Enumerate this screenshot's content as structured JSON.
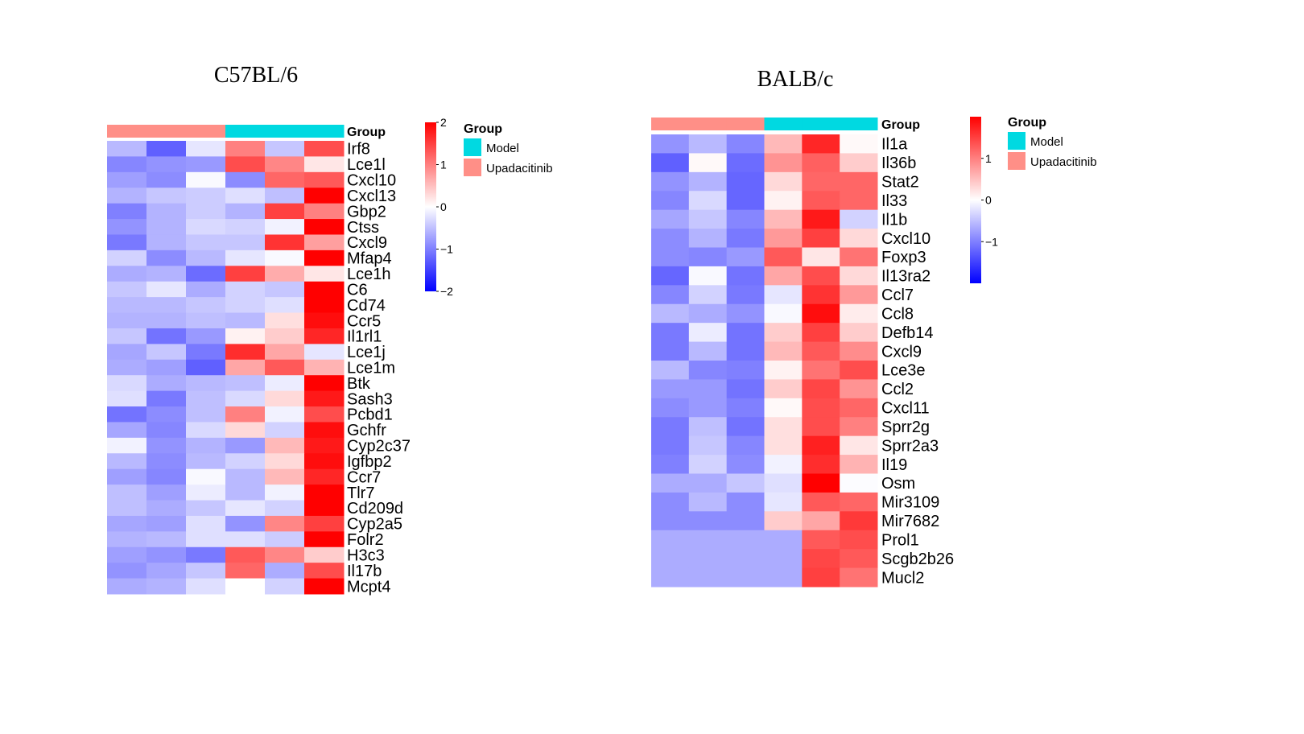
{
  "chart_data": [
    {
      "type": "heatmap",
      "title": "C57BL/6",
      "annotation_title": "Group",
      "column_groups": [
        "Upadacitinib",
        "Upadacitinib",
        "Upadacitinib",
        "Model",
        "Model",
        "Model"
      ],
      "legend_title": "Group",
      "legend_entries": [
        "Model",
        "Upadacitinib"
      ],
      "color_scale": {
        "min": -2,
        "max": 2,
        "ticks": [
          2,
          1,
          0,
          -1,
          -2
        ],
        "tick_labels": [
          "2",
          "1",
          "0",
          "−1",
          "−2"
        ],
        "low": "#0000FF",
        "mid": "#FFFFFF",
        "high": "#FF0000"
      },
      "rows": [
        "Irf8",
        "Lce1l",
        "Cxcl10",
        "Cxcl13",
        "Gbp2",
        "Ctss",
        "Cxcl9",
        "Mfap4",
        "Lce1h",
        "C6",
        "Cd74",
        "Ccr5",
        "Il1rl1",
        "Lce1j",
        "Lce1m",
        "Btk",
        "Sash3",
        "Pcbd1",
        "Gchfr",
        "Cyp2c37",
        "Igfbp2",
        "Ccr7",
        "Tlr7",
        "Cd209d",
        "Cyp2a5",
        "Folr2",
        "H3c3",
        "Il17b",
        "Mcpt4"
      ],
      "values": [
        [
          -0.55,
          -1.25,
          -0.2,
          1.0,
          -0.45,
          1.4
        ],
        [
          -0.95,
          -0.85,
          -0.8,
          1.4,
          0.95,
          0.2
        ],
        [
          -0.75,
          -0.9,
          -0.05,
          -0.9,
          1.2,
          1.3
        ],
        [
          -0.6,
          -0.45,
          -0.4,
          -0.25,
          -0.5,
          2.0
        ],
        [
          -1.0,
          -0.6,
          -0.4,
          -0.6,
          1.5,
          1.0
        ],
        [
          -0.85,
          -0.6,
          -0.3,
          -0.35,
          -0.1,
          2.0
        ],
        [
          -1.05,
          -0.6,
          -0.45,
          -0.45,
          1.6,
          0.75
        ],
        [
          -0.35,
          -0.9,
          -0.55,
          -0.2,
          -0.05,
          2.0
        ],
        [
          -0.65,
          -0.6,
          -1.15,
          1.5,
          0.65,
          0.2
        ],
        [
          -0.45,
          -0.2,
          -0.65,
          -0.35,
          -0.45,
          2.0
        ],
        [
          -0.55,
          -0.55,
          -0.45,
          -0.35,
          -0.25,
          2.0
        ],
        [
          -0.6,
          -0.6,
          -0.5,
          -0.55,
          0.25,
          1.9
        ],
        [
          -0.45,
          -1.1,
          -0.8,
          0.1,
          0.4,
          1.7
        ],
        [
          -0.7,
          -0.45,
          -1.05,
          1.65,
          0.7,
          -0.2
        ],
        [
          -0.65,
          -0.75,
          -1.25,
          0.7,
          1.3,
          0.6
        ],
        [
          -0.3,
          -0.65,
          -0.55,
          -0.5,
          -0.15,
          2.0
        ],
        [
          -0.25,
          -1.05,
          -0.5,
          -0.3,
          0.3,
          1.8
        ],
        [
          -1.1,
          -0.9,
          -0.5,
          1.0,
          -0.1,
          1.4
        ],
        [
          -0.7,
          -0.95,
          -0.3,
          0.3,
          -0.35,
          1.9
        ],
        [
          -0.1,
          -0.85,
          -0.6,
          -0.8,
          0.55,
          1.8
        ],
        [
          -0.55,
          -0.9,
          -0.55,
          -0.35,
          0.3,
          1.9
        ],
        [
          -0.75,
          -0.95,
          -0.05,
          -0.55,
          0.55,
          1.7
        ],
        [
          -0.5,
          -0.75,
          -0.15,
          -0.55,
          -0.1,
          2.0
        ],
        [
          -0.5,
          -0.65,
          -0.45,
          -0.2,
          -0.35,
          2.0
        ],
        [
          -0.7,
          -0.75,
          -0.25,
          -0.85,
          0.95,
          1.5
        ],
        [
          -0.6,
          -0.55,
          -0.25,
          -0.25,
          -0.4,
          2.0
        ],
        [
          -0.75,
          -0.85,
          -1.05,
          1.3,
          0.95,
          0.4
        ],
        [
          -0.85,
          -0.7,
          -0.45,
          1.2,
          -0.65,
          1.4
        ],
        [
          -0.65,
          -0.6,
          -0.25,
          0.0,
          -0.35,
          2.0
        ]
      ]
    },
    {
      "type": "heatmap",
      "title": "BALB/c",
      "annotation_title": "Group",
      "column_groups": [
        "Upadacitinib",
        "Upadacitinib",
        "Upadacitinib",
        "Model",
        "Model",
        "Model"
      ],
      "legend_title": "Group",
      "legend_entries": [
        "Model",
        "Upadacitinib"
      ],
      "color_scale": {
        "min": -2,
        "max": 2,
        "ticks": [
          1,
          0,
          -1
        ],
        "tick_labels": [
          "1",
          "0",
          "−1"
        ],
        "low": "#0000FF",
        "mid": "#FFFFFF",
        "high": "#FF0000"
      },
      "rows": [
        "Il1a",
        "Il36b",
        "Stat2",
        "Il33",
        "Il1b",
        "Cxcl10",
        "Foxp3",
        "Il13ra2",
        "Ccl7",
        "Ccl8",
        "Defb14",
        "Cxcl9",
        "Lce3e",
        "Ccl2",
        "Cxcl11",
        "Sprr2g",
        "Sprr2a3",
        "Il19",
        "Osm",
        "Mir3109",
        "Mir7682",
        "Prol1",
        "Scgb2b26",
        "Mucl2"
      ],
      "values": [
        [
          -0.85,
          -0.55,
          -0.95,
          0.55,
          1.7,
          0.05
        ],
        [
          -1.25,
          0.05,
          -1.15,
          0.85,
          1.25,
          0.4
        ],
        [
          -0.85,
          -0.6,
          -1.2,
          0.3,
          1.2,
          1.2
        ],
        [
          -0.95,
          -0.3,
          -1.2,
          0.1,
          1.3,
          1.2
        ],
        [
          -0.7,
          -0.45,
          -0.95,
          0.55,
          1.8,
          -0.35
        ],
        [
          -0.9,
          -0.6,
          -1.05,
          0.8,
          1.5,
          0.3
        ],
        [
          -0.9,
          -0.95,
          -0.8,
          1.3,
          0.2,
          1.1
        ],
        [
          -1.2,
          -0.05,
          -1.1,
          0.7,
          1.4,
          0.3
        ],
        [
          -0.95,
          -0.35,
          -1.05,
          -0.2,
          1.6,
          0.8
        ],
        [
          -0.55,
          -0.65,
          -0.85,
          -0.05,
          1.9,
          0.15
        ],
        [
          -1.05,
          -0.15,
          -1.1,
          0.4,
          1.5,
          0.4
        ],
        [
          -1.05,
          -0.55,
          -1.1,
          0.55,
          1.3,
          0.9
        ],
        [
          -0.55,
          -0.95,
          -1.0,
          0.1,
          1.1,
          1.4
        ],
        [
          -0.8,
          -0.8,
          -1.1,
          0.4,
          1.45,
          0.85
        ],
        [
          -0.9,
          -0.8,
          -1.0,
          0.05,
          1.4,
          1.2
        ],
        [
          -1.05,
          -0.5,
          -1.1,
          0.25,
          1.4,
          1.0
        ],
        [
          -1.05,
          -0.45,
          -0.95,
          0.25,
          1.75,
          0.2
        ],
        [
          -1.0,
          -0.35,
          -0.9,
          -0.1,
          1.65,
          0.6
        ],
        [
          -0.65,
          -0.65,
          -0.45,
          -0.25,
          2.0,
          -0.02
        ],
        [
          -0.9,
          -0.55,
          -0.9,
          -0.2,
          1.3,
          1.2
        ],
        [
          -0.9,
          -0.9,
          -0.9,
          0.4,
          0.7,
          1.55
        ],
        [
          -0.65,
          -0.65,
          -0.65,
          -0.65,
          1.3,
          1.4
        ],
        [
          -0.65,
          -0.65,
          -0.65,
          -0.65,
          1.45,
          1.3
        ],
        [
          -0.65,
          -0.65,
          -0.65,
          -0.65,
          1.5,
          1.1
        ]
      ]
    }
  ],
  "group_colors": {
    "Model": "#00D9E1",
    "Upadacitinib": "#FF8F87"
  }
}
